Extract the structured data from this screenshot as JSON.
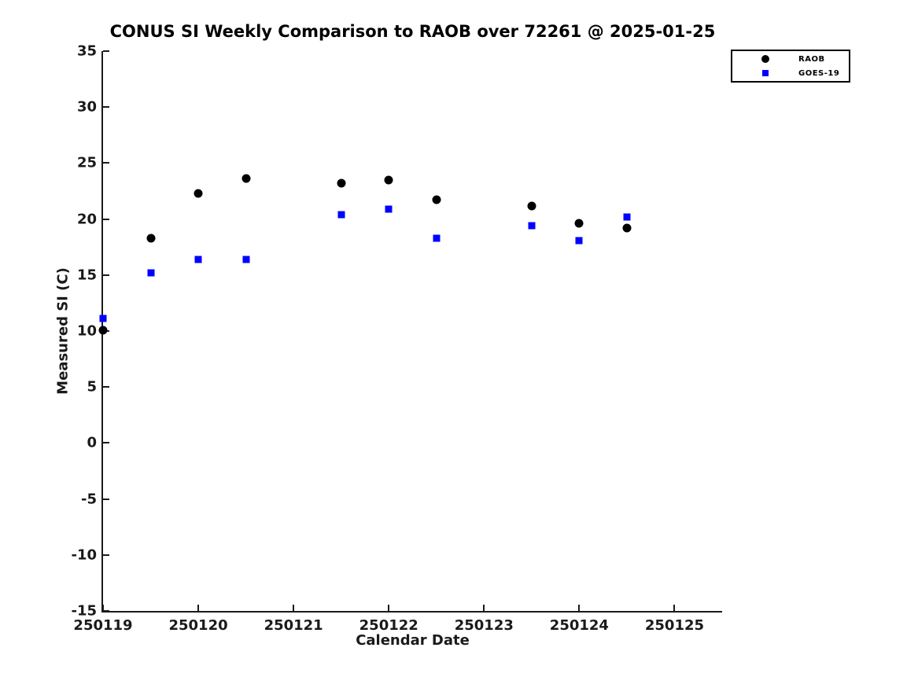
{
  "chart_data": {
    "type": "scatter",
    "title": "CONUS SI Weekly Comparison to RAOB over 72261 @ 2025-01-25",
    "xlabel": "Calendar Date",
    "ylabel": "Measured SI (C)",
    "xlim": [
      250119,
      250125.5
    ],
    "ylim": [
      -15,
      35
    ],
    "x_ticks": [
      250119,
      250120,
      250121,
      250122,
      250123,
      250124,
      250125
    ],
    "y_ticks": [
      -15,
      -10,
      -5,
      0,
      5,
      10,
      15,
      20,
      25,
      30,
      35
    ],
    "grid": false,
    "legend_position": "top-right",
    "series": [
      {
        "name": "RAOB",
        "marker": "circle",
        "color": "#000000",
        "points": [
          [
            250119.0,
            10.1
          ],
          [
            250119.5,
            18.3
          ],
          [
            250120.0,
            22.3
          ],
          [
            250120.5,
            23.6
          ],
          [
            250121.5,
            23.2
          ],
          [
            250122.0,
            23.5
          ],
          [
            250122.5,
            21.7
          ],
          [
            250123.5,
            21.2
          ],
          [
            250124.0,
            19.6
          ],
          [
            250124.5,
            19.2
          ]
        ]
      },
      {
        "name": "GOES-19",
        "marker": "square",
        "color": "#0000ff",
        "points": [
          [
            250119.0,
            11.1
          ],
          [
            250119.5,
            15.2
          ],
          [
            250120.0,
            16.4
          ],
          [
            250120.5,
            16.4
          ],
          [
            250121.5,
            20.4
          ],
          [
            250122.0,
            20.9
          ],
          [
            250122.5,
            18.3
          ],
          [
            250123.5,
            19.4
          ],
          [
            250124.0,
            18.1
          ],
          [
            250124.5,
            20.2
          ]
        ]
      }
    ]
  }
}
